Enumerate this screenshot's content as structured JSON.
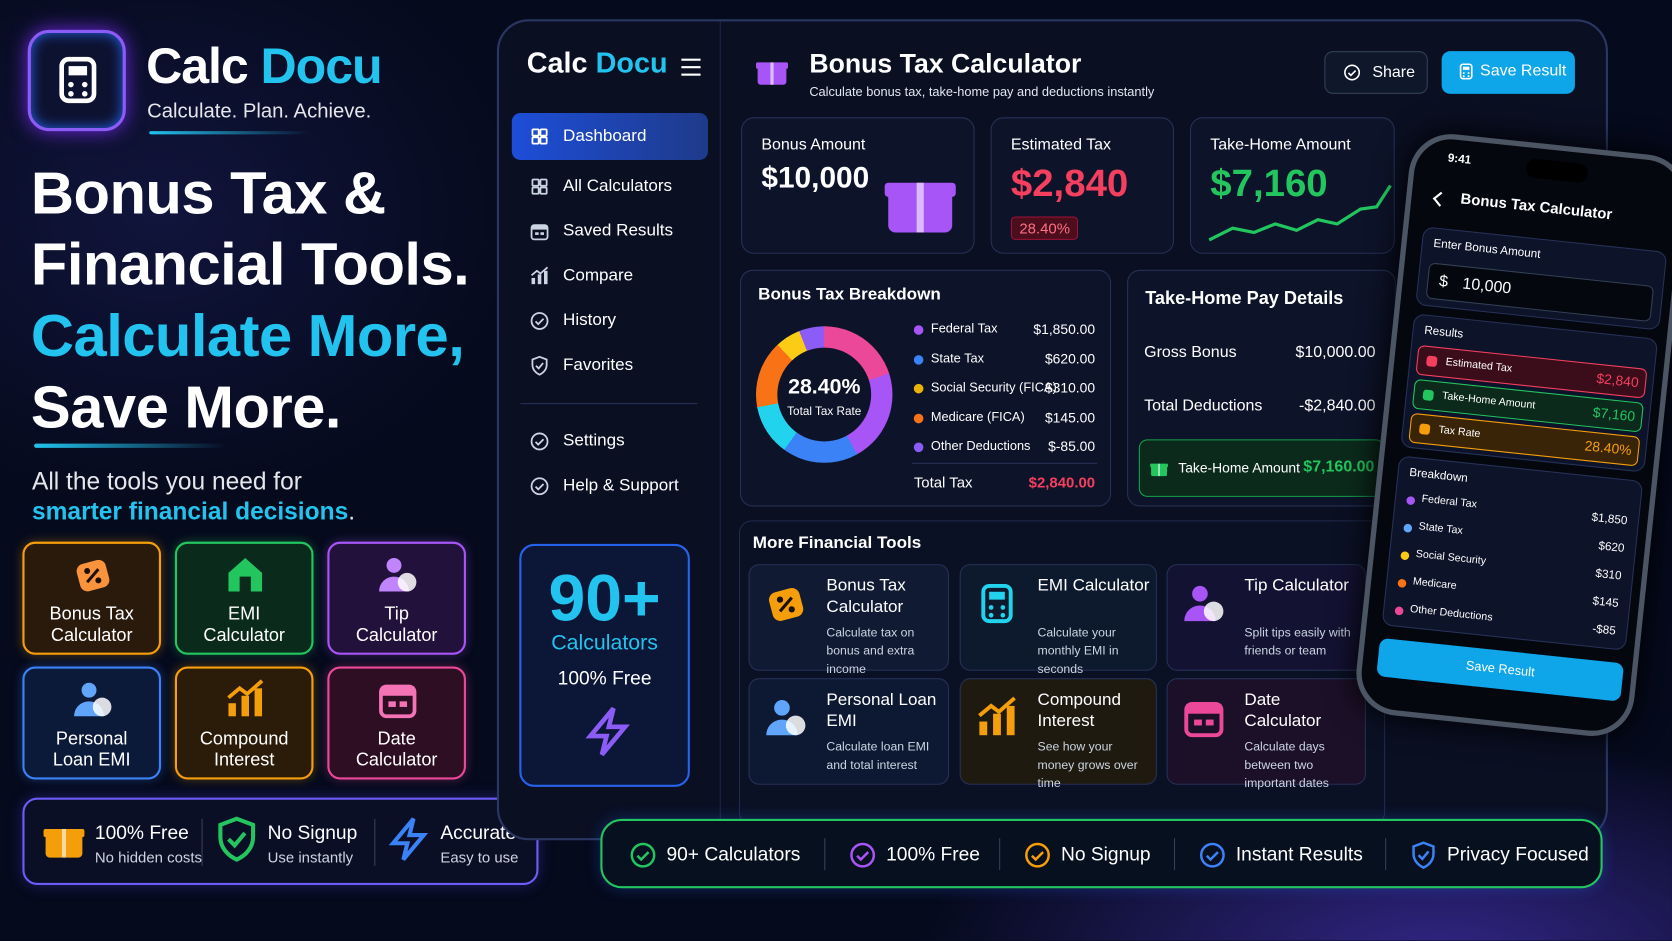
{
  "brand": {
    "name_a": "Calc",
    "name_b": "Docu",
    "tagline": "Calculate. Plan. Achieve."
  },
  "hero": {
    "lines": [
      "Bonus Tax &",
      "Financial Tools.",
      "Calculate More,",
      "Save More."
    ],
    "subtitle": "All the tools you need for",
    "subtitle_highlight": "smarter financial decisions",
    "subtitle_end": "."
  },
  "tools": [
    {
      "lines": [
        "Bonus Tax",
        "Calculator"
      ]
    },
    {
      "lines": [
        "EMI",
        "Calculator"
      ]
    },
    {
      "lines": [
        "Tip",
        "Calculator"
      ]
    },
    {
      "lines": [
        "Personal",
        "Loan EMI"
      ]
    },
    {
      "lines": [
        "Compound",
        "Interest"
      ]
    },
    {
      "lines": [
        "Date",
        "Calculator"
      ]
    }
  ],
  "perks": [
    {
      "title": "100% Free",
      "text": "No hidden costs"
    },
    {
      "title": "No Signup",
      "text": "Use instantly"
    },
    {
      "title": "Accurate",
      "text": "Easy to use"
    }
  ],
  "app": {
    "brand_a": "Calc",
    "brand_b": "Docu",
    "menu": [
      "Dashboard",
      "All Calculators",
      "Saved Results",
      "Compare",
      "History",
      "Favorites"
    ],
    "menu_bottom": [
      "Settings",
      "Help & Support"
    ],
    "promo": {
      "count": "90+",
      "label": "Calculators",
      "note": "100% Free"
    },
    "title": "Bonus Tax Calculator",
    "subtitle": "Calculate bonus tax, take-home pay and deductions instantly",
    "buttons": [
      "Share",
      "Save Result"
    ],
    "stats": [
      {
        "label": "Bonus Amount",
        "value": "$10,000"
      },
      {
        "label": "Estimated Tax",
        "value": "$2,840",
        "badge": "28.40%"
      },
      {
        "label": "Take-Home Amount",
        "value": "$7,160"
      }
    ],
    "breakdown": {
      "title": "Bonus Tax Breakdown",
      "center_value": "28.40%",
      "center_label": "Total Tax Rate",
      "items": [
        {
          "label": "Federal Tax",
          "value": "$1,850.00"
        },
        {
          "label": "State Tax",
          "value": "$620.00"
        },
        {
          "label": "Social Security (FICA)",
          "value": "$310.00"
        },
        {
          "label": "Medicare (FICA)",
          "value": "$145.00"
        },
        {
          "label": "Other Deductions",
          "value": "$-85.00"
        }
      ],
      "total_label": "Total Tax",
      "total_value": "$2,840.00"
    },
    "details": {
      "title": "Take-Home Pay Details",
      "rows": [
        {
          "label": "Gross Bonus",
          "value": "$10,000.00"
        },
        {
          "label": "Total Deductions",
          "value": "-$2,840.00"
        }
      ],
      "highlight": {
        "label": "Take-Home Amount",
        "value": "$7,160.00"
      }
    },
    "more": {
      "title": "More Financial Tools",
      "items": [
        {
          "title": "Bonus Tax Calculator",
          "text": "Calculate tax on bonus and extra income"
        },
        {
          "title": "EMI Calculator",
          "text": "Calculate your monthly EMI in seconds"
        },
        {
          "title": "Tip Calculator",
          "text": "Split tips easily with friends or team"
        },
        {
          "title": "Personal Loan EMI",
          "text": "Calculate loan EMI and total interest"
        },
        {
          "title": "Compound Interest",
          "text": "See how your money grows over time"
        },
        {
          "title": "Date Calculator",
          "text": "Calculate days between two important dates"
        }
      ]
    }
  },
  "phone": {
    "time": "9:41",
    "title": "Bonus Tax Calculator",
    "input_label": "Enter Bonus Amount",
    "currency": "$",
    "input_value": "10,000",
    "results_title": "Results",
    "results": [
      {
        "label": "Estimated Tax",
        "value": "$2,840"
      },
      {
        "label": "Take-Home Amount",
        "value": "$7,160"
      },
      {
        "label": "Tax Rate",
        "value": "28.40%"
      }
    ],
    "breakdown_title": "Breakdown",
    "breakdown": [
      {
        "label": "Federal Tax",
        "value": "$1,850"
      },
      {
        "label": "State Tax",
        "value": "$620"
      },
      {
        "label": "Social Security",
        "value": "$310"
      },
      {
        "label": "Medicare",
        "value": "$145"
      },
      {
        "label": "Other Deductions",
        "value": "-$85"
      }
    ],
    "button": "Save Result"
  },
  "badges": [
    "90+ Calculators",
    "100% Free",
    "No Signup",
    "Instant Results",
    "Privacy Focused"
  ]
}
